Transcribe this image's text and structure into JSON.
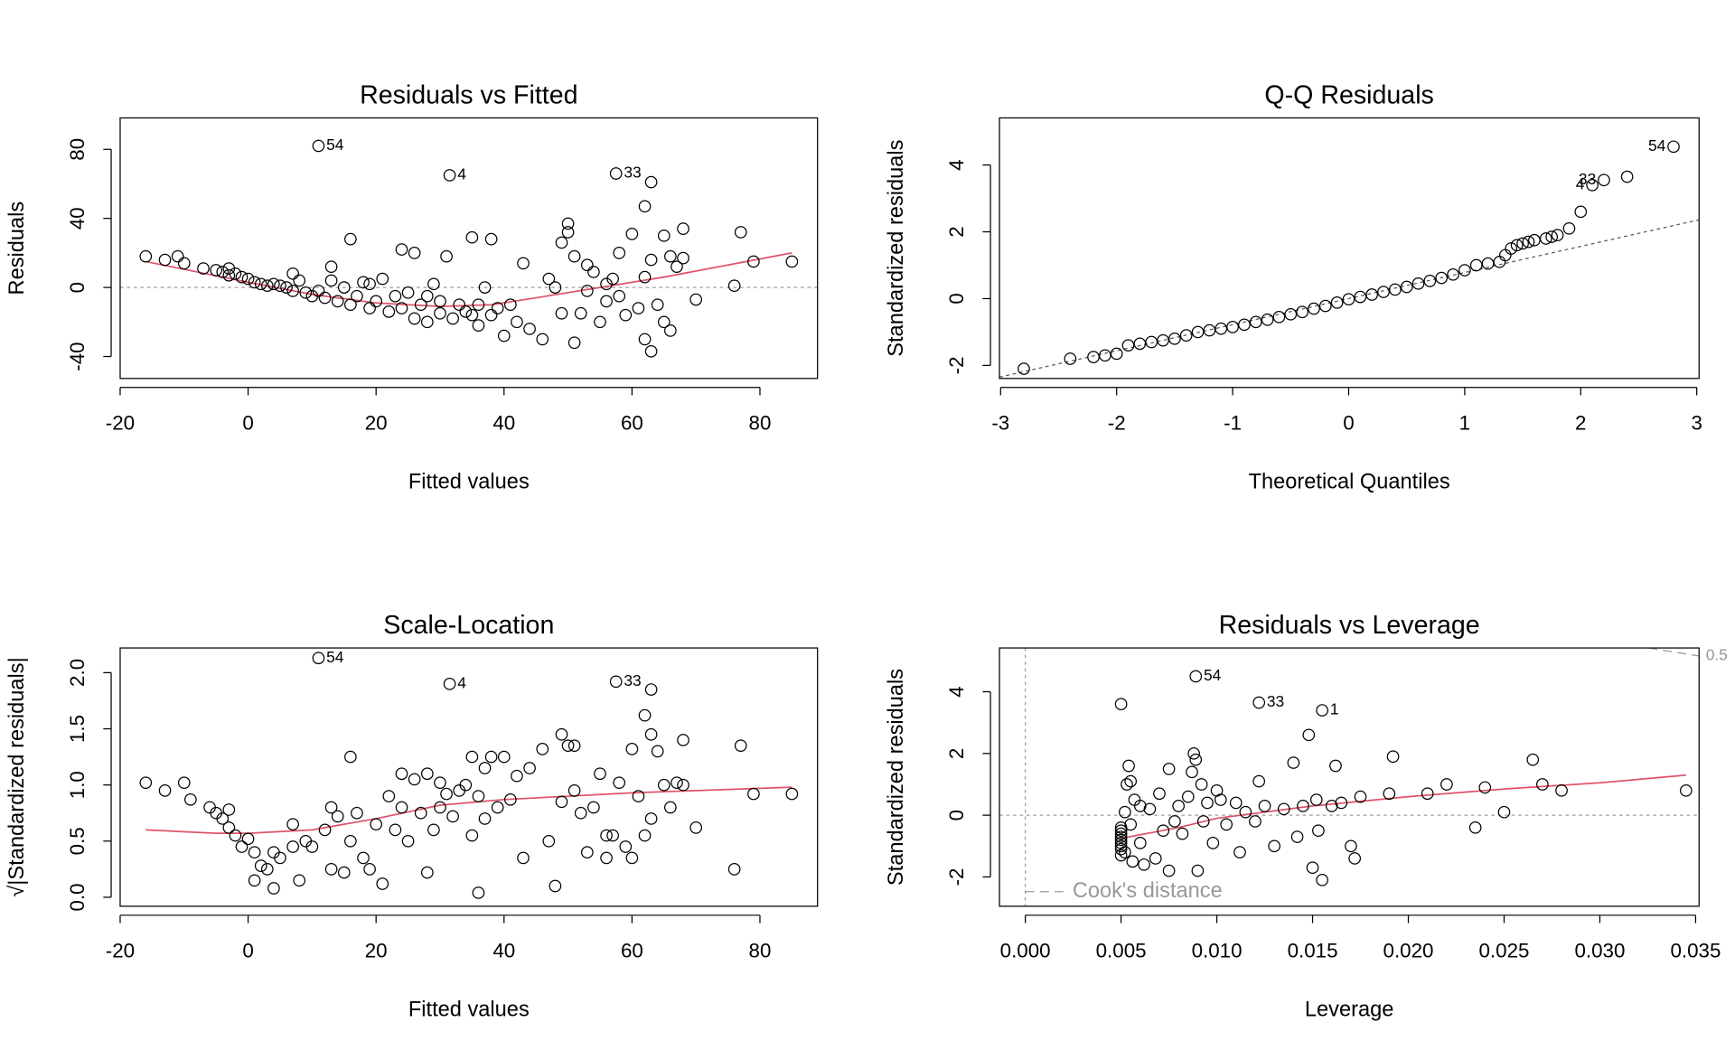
{
  "chart_data": [
    {
      "type": "scatter",
      "title": "Residuals vs Fitted",
      "xlabel": "Fitted values",
      "ylabel": "Residuals",
      "xlim": [
        -20,
        89
      ],
      "ylim": [
        -52.7,
        98.2
      ],
      "xticks": [
        -20,
        0,
        20,
        40,
        60,
        80
      ],
      "yticks": [
        -40,
        0,
        40,
        80
      ],
      "hline": 0,
      "series": [
        {
          "color": "#000000",
          "style": "points",
          "x": [
            -16,
            -13,
            -11,
            -10,
            -7,
            -5,
            -4,
            -3,
            -3,
            -2,
            -1,
            0,
            1,
            2,
            3,
            4,
            5,
            6,
            7,
            7,
            8,
            9,
            10,
            11,
            12,
            13,
            13,
            14,
            15,
            16,
            16,
            17,
            18,
            19,
            19,
            20,
            21,
            22,
            23,
            24,
            24,
            25,
            26,
            26,
            27,
            28,
            28,
            29,
            30,
            30,
            31,
            32,
            33,
            34,
            35,
            35,
            36,
            36,
            37,
            38,
            38,
            39,
            40,
            41,
            42,
            43,
            44,
            46,
            47,
            48,
            49,
            49,
            50,
            50,
            51,
            51,
            52,
            53,
            53,
            54,
            55,
            56,
            56,
            57,
            58,
            58,
            59,
            60,
            61,
            62,
            62,
            62,
            63,
            63,
            63,
            64,
            65,
            65,
            66,
            66,
            67,
            68,
            68,
            70,
            76,
            77,
            79,
            85,
            11,
            31.5,
            57.5
          ],
          "values": [
            18,
            16,
            18,
            14,
            11,
            10,
            9,
            11,
            7,
            8,
            6,
            5,
            3,
            2,
            1,
            2,
            1,
            0,
            8,
            -2,
            4,
            -3,
            -5,
            -2,
            -6,
            4,
            12,
            -8,
            0,
            28,
            -10,
            -5,
            3,
            -12,
            2,
            -8,
            5,
            -14,
            -5,
            22,
            -12,
            -3,
            -18,
            20,
            -10,
            -20,
            -5,
            2,
            -15,
            -8,
            18,
            -18,
            -10,
            -14,
            -16,
            29,
            -22,
            -10,
            0,
            28,
            -16,
            -12,
            -28,
            -10,
            -20,
            14,
            -24,
            -30,
            5,
            0,
            26,
            -15,
            37,
            32,
            -32,
            18,
            -15,
            13,
            -2,
            9,
            -20,
            -8,
            2,
            5,
            20,
            -5,
            -16,
            31,
            -12,
            6,
            47,
            -30,
            16,
            -37,
            61,
            -10,
            30,
            -20,
            -25,
            18,
            12,
            17,
            34,
            -7,
            1,
            32,
            15,
            15,
            82,
            65,
            66
          ]
        },
        {
          "color": "#DF536B",
          "style": "line",
          "x": [
            -16,
            0,
            10,
            20,
            30,
            38,
            45,
            55,
            65,
            75,
            85
          ],
          "values": [
            15,
            3,
            -4,
            -9,
            -11,
            -10,
            -6,
            0,
            6,
            13,
            20
          ]
        }
      ],
      "annotations": [
        {
          "text": "54",
          "x": 11,
          "y": 82
        },
        {
          "text": "4",
          "x": 31.5,
          "y": 65
        },
        {
          "text": "33",
          "x": 57.5,
          "y": 66
        }
      ]
    },
    {
      "type": "scatter",
      "title": "Q-Q Residuals",
      "xlabel": "Theoretical Quantiles",
      "ylabel": "Standardized residuals",
      "xlim": [
        -3.01,
        3.02
      ],
      "ylim": [
        -2.39,
        5.41
      ],
      "xticks": [
        -3,
        -2,
        -1,
        0,
        1,
        2,
        3
      ],
      "yticks": [
        -2,
        0,
        2,
        4
      ],
      "reference_line": {
        "x": [
          -3.01,
          3.02
        ],
        "y": [
          -2.35,
          2.36
        ]
      },
      "series": [
        {
          "color": "#000000",
          "style": "points",
          "x": [
            -2.8,
            -2.4,
            -2.2,
            -2.1,
            -2.0,
            -1.9,
            -1.8,
            -1.7,
            -1.6,
            -1.5,
            -1.4,
            -1.3,
            -1.2,
            -1.1,
            -1.0,
            -0.9,
            -0.8,
            -0.7,
            -0.6,
            -0.5,
            -0.4,
            -0.3,
            -0.2,
            -0.1,
            0,
            0.1,
            0.2,
            0.3,
            0.4,
            0.5,
            0.6,
            0.7,
            0.8,
            0.9,
            1.0,
            1.1,
            1.2,
            1.3,
            1.35,
            1.4,
            1.45,
            1.5,
            1.55,
            1.6,
            1.7,
            1.75,
            1.8,
            1.9,
            2.0,
            2.1,
            2.2,
            2.4,
            2.8
          ],
          "values": [
            -2.1,
            -1.8,
            -1.75,
            -1.7,
            -1.65,
            -1.4,
            -1.35,
            -1.3,
            -1.25,
            -1.2,
            -1.1,
            -1.0,
            -0.95,
            -0.9,
            -0.85,
            -0.78,
            -0.7,
            -0.63,
            -0.55,
            -0.47,
            -0.4,
            -0.3,
            -0.22,
            -0.12,
            -0.02,
            0.05,
            0.12,
            0.2,
            0.27,
            0.35,
            0.45,
            0.53,
            0.62,
            0.72,
            0.85,
            1.0,
            1.05,
            1.1,
            1.3,
            1.5,
            1.6,
            1.65,
            1.7,
            1.75,
            1.8,
            1.85,
            1.9,
            2.1,
            2.6,
            3.4,
            3.55,
            3.65,
            4.55
          ]
        }
      ],
      "annotations": [
        {
          "text": "54",
          "x": 2.8,
          "y": 4.55
        },
        {
          "text": "4",
          "x": 2.1,
          "y": 3.4
        },
        {
          "text": "33",
          "x": 2.2,
          "y": 3.55
        }
      ]
    },
    {
      "type": "scatter",
      "title": "Scale-Location",
      "xlabel": "Fitted values",
      "ylabel": "√|Standardized residuals|",
      "xlim": [
        -20,
        89
      ],
      "ylim": [
        -0.08,
        2.22
      ],
      "xticks": [
        -20,
        0,
        20,
        40,
        60,
        80
      ],
      "yticks": [
        {
          "value": 0,
          "label": "0.0"
        },
        0.5,
        {
          "value": 1,
          "label": "1.0"
        },
        1.5,
        {
          "value": 2,
          "label": "2.0"
        }
      ],
      "series": [
        {
          "color": "#000000",
          "style": "points",
          "x": [
            -16,
            -13,
            -10,
            -9,
            -6,
            -5,
            -4,
            -3,
            -3,
            -2,
            -1,
            0,
            1,
            1,
            2,
            3,
            4,
            4,
            5,
            7,
            7,
            8,
            9,
            10,
            12,
            13,
            13,
            14,
            15,
            16,
            16,
            17,
            18,
            19,
            20,
            21,
            22,
            23,
            24,
            24,
            25,
            26,
            27,
            28,
            28,
            29,
            30,
            30,
            31,
            32,
            33,
            34,
            35,
            35,
            36,
            36,
            37,
            37,
            38,
            39,
            40,
            41,
            42,
            43,
            44,
            46,
            47,
            48,
            49,
            49,
            50,
            51,
            51,
            52,
            53,
            54,
            55,
            56,
            56,
            57,
            58,
            59,
            60,
            60,
            61,
            62,
            62,
            63,
            63,
            63,
            64,
            65,
            66,
            67,
            68,
            68,
            70,
            76,
            77,
            79,
            85,
            11,
            31.5,
            57.5
          ],
          "values": [
            1.02,
            0.95,
            1.02,
            0.87,
            0.8,
            0.75,
            0.7,
            0.78,
            0.62,
            0.55,
            0.45,
            0.52,
            0.4,
            0.15,
            0.28,
            0.25,
            0.08,
            0.4,
            0.35,
            0.65,
            0.45,
            0.15,
            0.5,
            0.45,
            0.6,
            0.8,
            0.25,
            0.72,
            0.22,
            1.25,
            0.5,
            0.75,
            0.35,
            0.25,
            0.65,
            0.12,
            0.9,
            0.6,
            1.1,
            0.8,
            0.5,
            1.05,
            0.75,
            1.1,
            0.22,
            0.6,
            1.02,
            0.8,
            0.92,
            0.72,
            0.95,
            1.0,
            0.55,
            1.25,
            0.9,
            0.04,
            1.15,
            0.7,
            1.25,
            0.8,
            1.25,
            0.87,
            1.08,
            0.35,
            1.15,
            1.32,
            0.5,
            0.1,
            1.45,
            0.85,
            1.35,
            0.95,
            1.35,
            0.75,
            0.4,
            0.8,
            1.1,
            0.55,
            0.35,
            0.55,
            1.02,
            0.45,
            0.35,
            1.32,
            0.9,
            1.62,
            0.55,
            1.45,
            0.7,
            1.85,
            1.3,
            1.0,
            0.8,
            1.02,
            1.4,
            1.0,
            0.62,
            0.25,
            1.35,
            0.92,
            0.92,
            2.13,
            1.9,
            1.92
          ]
        },
        {
          "color": "#DF536B",
          "style": "line",
          "x": [
            -16,
            -5,
            0,
            10,
            20,
            30,
            40,
            50,
            60,
            70,
            85
          ],
          "values": [
            0.6,
            0.57,
            0.57,
            0.6,
            0.7,
            0.82,
            0.87,
            0.9,
            0.93,
            0.95,
            0.98
          ]
        }
      ],
      "annotations": [
        {
          "text": "54",
          "x": 11,
          "y": 2.13
        },
        {
          "text": "4",
          "x": 31.5,
          "y": 1.9
        },
        {
          "text": "33",
          "x": 57.5,
          "y": 1.92
        }
      ]
    },
    {
      "type": "scatter",
      "title": "Residuals vs Leverage",
      "xlabel": "Leverage",
      "ylabel": "Standardized residuals",
      "xlim": [
        -0.00135,
        0.03518
      ],
      "ylim": [
        -2.95,
        5.42
      ],
      "xticks": [
        {
          "value": 0,
          "label": "0.000"
        },
        {
          "value": 0.005,
          "label": "0.005"
        },
        {
          "value": 0.01,
          "label": "0.010"
        },
        {
          "value": 0.015,
          "label": "0.015"
        },
        {
          "value": 0.02,
          "label": "0.020"
        },
        {
          "value": 0.025,
          "label": "0.025"
        },
        {
          "value": 0.03,
          "label": "0.030"
        },
        {
          "value": 0.035,
          "label": "0.035"
        }
      ],
      "yticks": [
        -2,
        0,
        2,
        4
      ],
      "hline": 0,
      "vline": 0,
      "legend": "Cook's distance",
      "legend_position": "bottomleft",
      "cooks_line": {
        "x": [
          0.03254,
          0.03518
        ],
        "y": [
          5.42,
          5.16
        ],
        "label": "0.5",
        "color": "#999999"
      },
      "series": [
        {
          "color": "#000000",
          "style": "points",
          "x": [
            0.005,
            0.005,
            0.005,
            0.005,
            0.0052,
            0.0052,
            0.0053,
            0.0054,
            0.0055,
            0.0055,
            0.0056,
            0.0057,
            0.006,
            0.006,
            0.0062,
            0.0065,
            0.0068,
            0.007,
            0.0072,
            0.0075,
            0.0075,
            0.0078,
            0.008,
            0.0082,
            0.0085,
            0.0087,
            0.0088,
            0.0089,
            0.009,
            0.0092,
            0.0093,
            0.0095,
            0.0098,
            0.01,
            0.0102,
            0.0105,
            0.011,
            0.0112,
            0.0115,
            0.012,
            0.0122,
            0.0125,
            0.013,
            0.0135,
            0.014,
            0.0142,
            0.0145,
            0.0148,
            0.015,
            0.0152,
            0.0153,
            0.0155,
            0.016,
            0.0162,
            0.0165,
            0.017,
            0.0172,
            0.0175,
            0.019,
            0.0192,
            0.021,
            0.022,
            0.0235,
            0.024,
            0.025,
            0.0265,
            0.027,
            0.028,
            0.0345,
            0.005,
            0.005,
            0.005,
            0.005,
            0.005,
            0.005,
            0.0089,
            0.0122,
            0.0155
          ],
          "values": [
            3.6,
            -0.5,
            -1.0,
            -0.8,
            0.1,
            -1.2,
            1.0,
            1.6,
            1.1,
            -0.3,
            -1.5,
            0.5,
            -0.9,
            0.3,
            -1.6,
            0.2,
            -1.4,
            0.7,
            -0.5,
            1.5,
            -1.8,
            -0.2,
            0.3,
            -0.6,
            0.6,
            1.4,
            2.0,
            1.8,
            -1.8,
            1.0,
            -0.2,
            0.4,
            -0.9,
            0.8,
            0.5,
            -0.3,
            0.4,
            -1.2,
            0.1,
            -0.2,
            1.1,
            0.3,
            -1.0,
            0.2,
            1.7,
            -0.7,
            0.3,
            2.6,
            -1.7,
            0.5,
            -0.5,
            -2.1,
            0.3,
            1.6,
            0.4,
            -1.0,
            -1.4,
            0.6,
            0.7,
            1.9,
            0.7,
            1.0,
            -0.4,
            0.9,
            0.1,
            1.8,
            1.0,
            0.8,
            0.8,
            -0.6,
            -0.7,
            -1.1,
            -0.9,
            -0.4,
            -1.3,
            4.5,
            3.65,
            3.4
          ]
        },
        {
          "color": "#DF536B",
          "style": "line",
          "x": [
            0.005,
            0.008,
            0.01,
            0.015,
            0.02,
            0.025,
            0.03,
            0.0345
          ],
          "values": [
            -0.75,
            -0.4,
            -0.1,
            0.3,
            0.6,
            0.85,
            1.05,
            1.3
          ]
        }
      ],
      "annotations": [
        {
          "text": "54",
          "x": 0.0089,
          "y": 4.5
        },
        {
          "text": "33",
          "x": 0.0122,
          "y": 3.65
        },
        {
          "text": "1",
          "x": 0.0155,
          "y": 3.4
        }
      ]
    }
  ]
}
